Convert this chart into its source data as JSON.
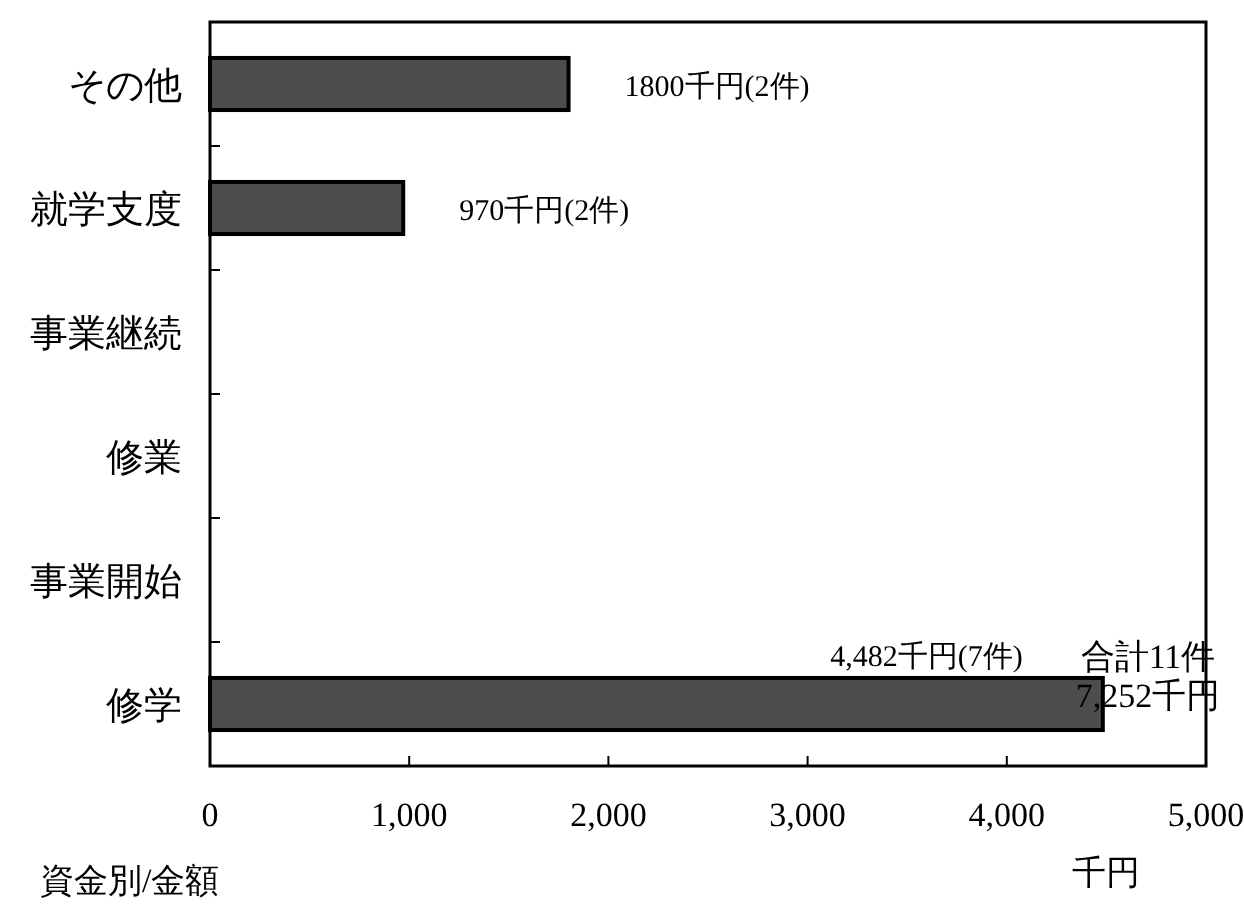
{
  "chart_data": {
    "type": "bar",
    "orientation": "horizontal",
    "categories": [
      "その他",
      "就学支度",
      "事業継続",
      "修業",
      "事業開始",
      "修学"
    ],
    "values": [
      1800,
      970,
      null,
      null,
      null,
      4482
    ],
    "value_labels": [
      "1800千円(2件)",
      "970千円(2件)",
      null,
      null,
      null,
      "4,482千円(7件)"
    ],
    "color": "#4d4d4d",
    "xlim": [
      0,
      5000
    ],
    "xticks": [
      0,
      {
        "value": 1000,
        "label": "1,000"
      },
      {
        "value": 2000,
        "label": "2,000"
      },
      {
        "value": 3000,
        "label": "3,000"
      },
      {
        "value": 4000,
        "label": "4,000"
      },
      {
        "value": 5000,
        "label": "5,000"
      }
    ],
    "xlabel": "千円",
    "grid": false,
    "annotations": [
      "合計11件\n7,252千円",
      "資金別/金額"
    ]
  }
}
